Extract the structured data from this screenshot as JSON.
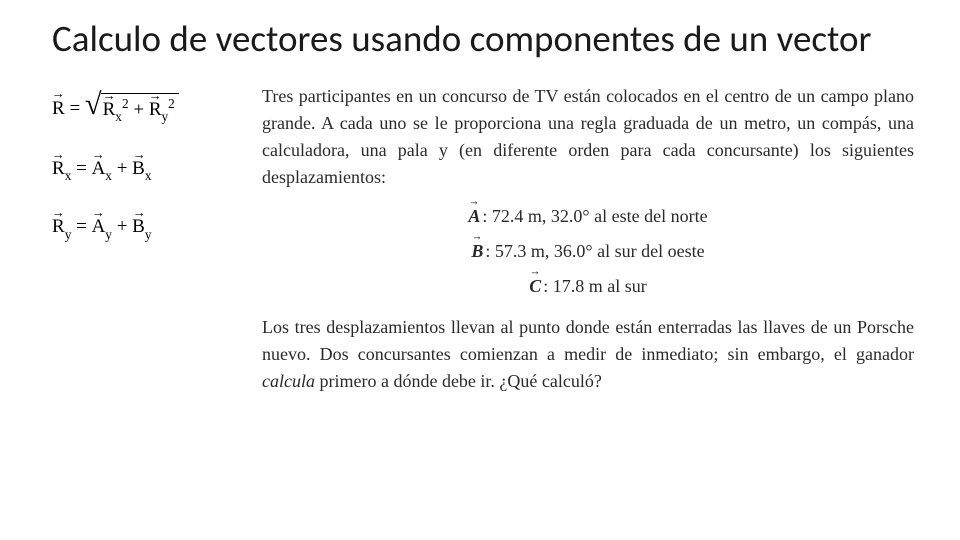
{
  "title": "Calculo de vectores usando componentes de un vector",
  "formulas": {
    "r_mag_lhs": "R",
    "rx2": "R",
    "ry2": "R",
    "rx_lhs": "R",
    "ax": "A",
    "bx": "B",
    "ry_lhs": "R",
    "ay": "A",
    "by": "B",
    "sub_x": "x",
    "sub_y": "y",
    "sup_2": "2",
    "eq": " = ",
    "plus": " + "
  },
  "problem": {
    "para1": "Tres participantes en un concurso de TV están colocados en el centro de un campo plano grande. A cada uno se le proporciona una regla graduada de un metro, un compás, una calculadora, una pala y (en diferente orden para cada concursante) los siguientes desplazamientos:",
    "vectors": [
      {
        "label": "A",
        "text": ": 72.4 m, 32.0° al este del norte"
      },
      {
        "label": "B",
        "text": ": 57.3 m, 36.0° al sur del oeste"
      },
      {
        "label": "C",
        "text": ": 17.8 m al sur"
      }
    ],
    "para2a": "Los tres desplazamientos llevan al punto donde están enterradas las llaves de un Porsche nuevo. Dos concursantes comienzan a medir de inmediato; sin embargo, el ganador ",
    "para2_em": "calcula",
    "para2b": " primero a dónde debe ir. ¿Qué calculó?"
  },
  "style": {
    "background": "#ffffff",
    "title_fontsize": 37,
    "body_fontsize": 18,
    "formula_fontsize": 19,
    "text_color": "#2a2a2a"
  }
}
